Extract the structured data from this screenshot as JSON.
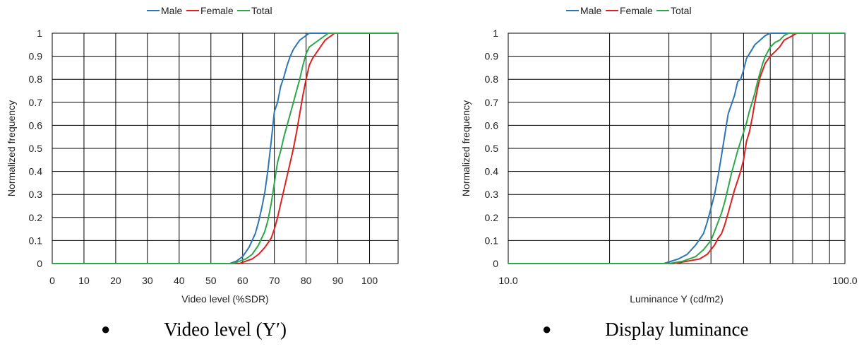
{
  "captions": {
    "left": "Video level (Y′)",
    "right": "Display luminance"
  },
  "chart_data": [
    {
      "type": "line",
      "legend_placement": "top-center",
      "grid": true,
      "xlabel": "Video level (%SDR)",
      "ylabel": "Normalized frequency",
      "x_scale": "linear",
      "xlim": [
        0,
        109
      ],
      "ylim": [
        0,
        1
      ],
      "x_ticks": [
        0,
        10,
        20,
        30,
        40,
        50,
        60,
        70,
        80,
        90,
        100
      ],
      "x_tick_labels": [
        "0",
        "10",
        "20",
        "30",
        "40",
        "50",
        "60",
        "70",
        "80",
        "90",
        "100"
      ],
      "y_ticks": [
        0,
        0.1,
        0.2,
        0.3,
        0.4,
        0.5,
        0.6,
        0.7,
        0.8,
        0.9,
        1
      ],
      "y_tick_labels": [
        "0",
        "0.1",
        "0.2",
        "0.3",
        "0.4",
        "0.5",
        "0.6",
        "0.7",
        "0.8",
        "0.9",
        "1"
      ],
      "series": [
        {
          "name": "Male",
          "color": "#2e75b6",
          "x": [
            0,
            56,
            58,
            60,
            62,
            64,
            65,
            66,
            67,
            68,
            69,
            70,
            71,
            72,
            73,
            74,
            75,
            76,
            77,
            78,
            79,
            80,
            81,
            82,
            109
          ],
          "y": [
            0,
            0,
            0.01,
            0.03,
            0.07,
            0.13,
            0.18,
            0.24,
            0.31,
            0.41,
            0.53,
            0.66,
            0.7,
            0.77,
            0.81,
            0.86,
            0.9,
            0.93,
            0.95,
            0.97,
            0.98,
            0.99,
            1,
            1,
            1
          ]
        },
        {
          "name": "Female",
          "color": "#e02020",
          "x": [
            0,
            59,
            61,
            63,
            65,
            67,
            68,
            69,
            70,
            71,
            72,
            73,
            74,
            75,
            76,
            77,
            78,
            79,
            80,
            81,
            82,
            83,
            84,
            85,
            86,
            87,
            88,
            89,
            109
          ],
          "y": [
            0,
            0,
            0.01,
            0.02,
            0.04,
            0.07,
            0.09,
            0.11,
            0.15,
            0.2,
            0.26,
            0.32,
            0.38,
            0.44,
            0.5,
            0.57,
            0.65,
            0.73,
            0.8,
            0.86,
            0.89,
            0.91,
            0.93,
            0.95,
            0.97,
            0.98,
            0.99,
            1,
            1
          ]
        },
        {
          "name": "Total",
          "color": "#2ca84a",
          "x": [
            0,
            57,
            59,
            61,
            63,
            65,
            66,
            67,
            68,
            69,
            70,
            71,
            72,
            73,
            74,
            75,
            76,
            77,
            78,
            79,
            80,
            81,
            82,
            83,
            84,
            85,
            86,
            87,
            88,
            109
          ],
          "y": [
            0,
            0,
            0.01,
            0.02,
            0.04,
            0.08,
            0.11,
            0.14,
            0.19,
            0.26,
            0.35,
            0.44,
            0.49,
            0.55,
            0.6,
            0.65,
            0.7,
            0.75,
            0.8,
            0.86,
            0.91,
            0.94,
            0.95,
            0.96,
            0.97,
            0.98,
            0.99,
            1,
            1,
            1
          ]
        }
      ]
    },
    {
      "type": "line",
      "legend_placement": "top-center",
      "grid": true,
      "xlabel": "Luminance Y (cd/m2)",
      "ylabel": "Normalized frequency",
      "x_scale": "log",
      "xlim": [
        10,
        100
      ],
      "ylim": [
        0,
        1
      ],
      "x_ticks": [
        10,
        20,
        30,
        40,
        50,
        60,
        70,
        80,
        90,
        100
      ],
      "x_tick_labels": [
        "10.0",
        "",
        "",
        "",
        "",
        "",
        "",
        "",
        "",
        "100.0"
      ],
      "y_ticks": [
        0,
        0.1,
        0.2,
        0.3,
        0.4,
        0.5,
        0.6,
        0.7,
        0.8,
        0.9,
        1
      ],
      "y_tick_labels": [
        "0",
        "0.1",
        "0.2",
        "0.3",
        "0.4",
        "0.5",
        "0.6",
        "0.7",
        "0.8",
        "0.9",
        "1"
      ],
      "series": [
        {
          "name": "Male",
          "color": "#2e75b6",
          "x": [
            10,
            29,
            32,
            34,
            36,
            38,
            39,
            40,
            41,
            42,
            43,
            44,
            45,
            46,
            47,
            48,
            49,
            50,
            51,
            52,
            53,
            54,
            55,
            56,
            58,
            60,
            62,
            64,
            100
          ],
          "y": [
            0,
            0,
            0.02,
            0.04,
            0.08,
            0.13,
            0.18,
            0.24,
            0.3,
            0.38,
            0.47,
            0.56,
            0.65,
            0.69,
            0.73,
            0.79,
            0.8,
            0.84,
            0.89,
            0.91,
            0.93,
            0.95,
            0.96,
            0.97,
            0.99,
            1,
            1,
            1,
            1
          ]
        },
        {
          "name": "Female",
          "color": "#e02020",
          "x": [
            10,
            31,
            34,
            37,
            39,
            41,
            42,
            43,
            44,
            45,
            46,
            47,
            48,
            49,
            50,
            51,
            52,
            53,
            54,
            55,
            56,
            58,
            60,
            62,
            64,
            66,
            68,
            70,
            72,
            74,
            76,
            78,
            80,
            100
          ],
          "y": [
            0,
            0,
            0.01,
            0.02,
            0.04,
            0.08,
            0.11,
            0.13,
            0.17,
            0.22,
            0.27,
            0.32,
            0.36,
            0.4,
            0.45,
            0.53,
            0.57,
            0.63,
            0.7,
            0.76,
            0.81,
            0.87,
            0.9,
            0.92,
            0.94,
            0.97,
            0.98,
            0.99,
            1,
            1,
            1,
            1,
            1,
            1
          ]
        },
        {
          "name": "Total",
          "color": "#2ca84a",
          "x": [
            10,
            30,
            33,
            36,
            38,
            40,
            41,
            42,
            43,
            44,
            45,
            46,
            47,
            48,
            49,
            50,
            51,
            52,
            53,
            54,
            55,
            56,
            57,
            58,
            60,
            62,
            64,
            66,
            68,
            70,
            100
          ],
          "y": [
            0,
            0,
            0.01,
            0.03,
            0.06,
            0.1,
            0.14,
            0.18,
            0.22,
            0.27,
            0.33,
            0.39,
            0.44,
            0.49,
            0.53,
            0.57,
            0.61,
            0.66,
            0.7,
            0.74,
            0.79,
            0.83,
            0.87,
            0.9,
            0.94,
            0.96,
            0.97,
            0.99,
            1,
            1,
            1
          ]
        }
      ]
    }
  ]
}
